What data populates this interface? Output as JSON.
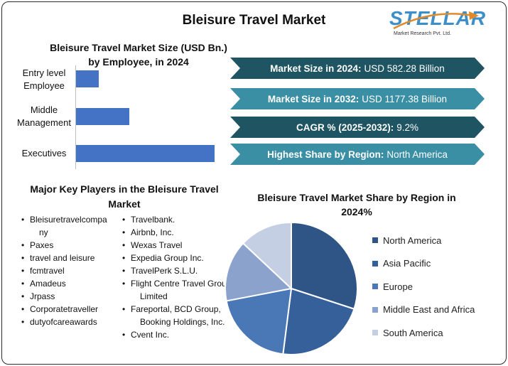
{
  "page": {
    "title": "Bleisure Travel Market"
  },
  "logo": {
    "word": "STELLAR",
    "subtitle": "Market Research Pvt. Ltd.",
    "color": "#3c8fc8"
  },
  "bar_chart": {
    "title_line1": "Bleisure Travel Market Size (USD Bn.)",
    "title_line2": "by Employee, in 2024",
    "categories": [
      {
        "line1": "Entry level",
        "line2": "Employee"
      },
      {
        "line1": "Middle",
        "line2": "Management"
      },
      {
        "line1": "Executives",
        "line2": ""
      }
    ],
    "bar_color": "#4472c4"
  },
  "stats": [
    {
      "label": "Market Size in 2024:",
      "value": "USD 582.28 Billion",
      "color": "#1f5563"
    },
    {
      "label": "Market Size in 2032:",
      "value": "USD 1177.38 Billion",
      "color": "#3a8fa4"
    },
    {
      "label": "CAGR % (2025-2032):",
      "value": "9.2%",
      "color": "#1f5563"
    },
    {
      "label": "Highest Share by Region:",
      "value": "North America",
      "color": "#3a8fa4"
    }
  ],
  "players": {
    "title_line1": "Major Key Players in the Bleisure Travel",
    "title_line2": "Market",
    "col1": [
      {
        "line1": "Bleisuretravelcompa",
        "line2": "ny"
      },
      {
        "line1": "Paxes",
        "line2": ""
      },
      {
        "line1": "travel and leisure",
        "line2": ""
      },
      {
        "line1": "fcmtravel",
        "line2": ""
      },
      {
        "line1": "Amadeus",
        "line2": ""
      },
      {
        "line1": "Jrpass",
        "line2": ""
      },
      {
        "line1": "Corporatetraveller",
        "line2": ""
      },
      {
        "line1": "dutyofcareawards",
        "line2": ""
      }
    ],
    "col2": [
      {
        "line1": "Travelbank.",
        "line2": ""
      },
      {
        "line1": "Airbnb, Inc.",
        "line2": ""
      },
      {
        "line1": "Wexas Travel",
        "line2": ""
      },
      {
        "line1": "Expedia Group Inc.",
        "line2": ""
      },
      {
        "line1": "TravelPerk S.L.U.",
        "line2": ""
      },
      {
        "line1": "Flight Centre Travel Group",
        "line2": "Limited"
      },
      {
        "line1": "Fareportal, BCD Group,",
        "line2": "Booking Holdings, Inc."
      },
      {
        "line1": "Cvent Inc.",
        "line2": ""
      }
    ]
  },
  "pie": {
    "title_line1": "Bleisure Travel Market Share by Region in",
    "title_line2": "2024%"
  },
  "chart_data": [
    {
      "type": "bar",
      "orientation": "horizontal",
      "categories": [
        "Entry level Employee",
        "Middle Management",
        "Executives"
      ],
      "values": [
        32,
        75,
        195
      ],
      "xlim": [
        0,
        200
      ],
      "grid": false,
      "title": "Bleisure Travel Market Size (USD Bn.) by Employee, in 2024"
    },
    {
      "type": "pie",
      "title": "Bleisure Travel Market Share by Region in 2024%",
      "legend_position": "right",
      "labels": [
        "North America",
        "Asia Pacific",
        "Europe",
        "Middle East and Africa",
        "South America"
      ],
      "values": [
        30,
        22,
        20,
        15,
        13
      ],
      "colors": [
        "#2f5486",
        "#35609a",
        "#4a77b5",
        "#8ba2cd",
        "#c5cfe4"
      ]
    }
  ]
}
